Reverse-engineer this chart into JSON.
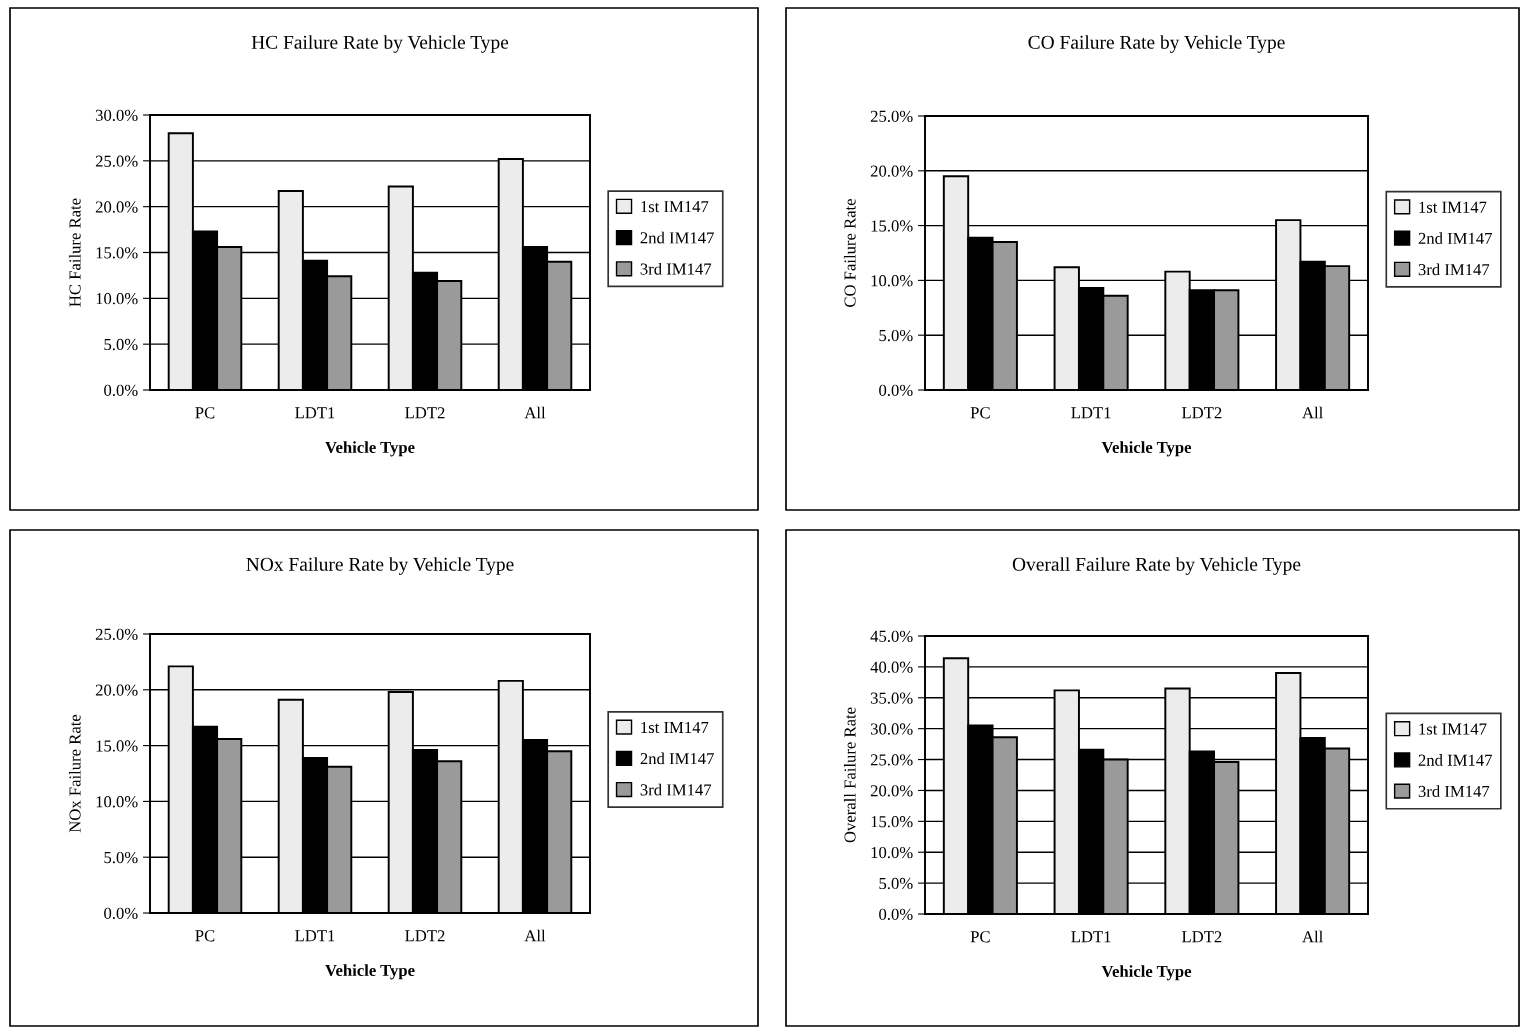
{
  "chart_data": [
    {
      "type": "bar",
      "title": "HC Failure Rate by Vehicle Type",
      "xlabel": "Vehicle Type",
      "ylabel": "HC Failure Rate",
      "categories": [
        "PC",
        "LDT1",
        "LDT2",
        "All"
      ],
      "series": [
        {
          "name": "1st IM147",
          "color": "#ececec",
          "values": [
            28.0,
            21.7,
            22.2,
            25.2
          ]
        },
        {
          "name": "2nd IM147",
          "color": "#000000",
          "values": [
            17.3,
            14.1,
            12.8,
            15.6
          ]
        },
        {
          "name": "3rd IM147",
          "color": "#9a9a9a",
          "values": [
            15.6,
            12.4,
            11.9,
            14.0
          ]
        }
      ],
      "ylim": [
        0,
        30
      ],
      "yticks": [
        {
          "value": 0,
          "label": "0.0%"
        },
        {
          "value": 5,
          "label": "5.0%"
        },
        {
          "value": 10,
          "label": "10.0%"
        },
        {
          "value": 15,
          "label": "15.0%"
        },
        {
          "value": 20,
          "label": "20.0%"
        },
        {
          "value": 25,
          "label": "25.0%"
        },
        {
          "value": 30,
          "label": "30.0%"
        }
      ],
      "grid": "y",
      "legend": "right"
    },
    {
      "type": "bar",
      "title": "CO Failure Rate by Vehicle Type",
      "xlabel": "Vehicle Type",
      "ylabel": "CO Failure Rate",
      "categories": [
        "PC",
        "LDT1",
        "LDT2",
        "All"
      ],
      "series": [
        {
          "name": "1st IM147",
          "color": "#ececec",
          "values": [
            19.5,
            11.2,
            10.8,
            15.5
          ]
        },
        {
          "name": "2nd IM147",
          "color": "#000000",
          "values": [
            13.9,
            9.3,
            9.1,
            11.7
          ]
        },
        {
          "name": "3rd IM147",
          "color": "#9a9a9a",
          "values": [
            13.5,
            8.6,
            9.1,
            11.3
          ]
        }
      ],
      "ylim": [
        0,
        25
      ],
      "yticks": [
        {
          "value": 0,
          "label": "0.0%"
        },
        {
          "value": 5,
          "label": "5.0%"
        },
        {
          "value": 10,
          "label": "10.0%"
        },
        {
          "value": 15,
          "label": "15.0%"
        },
        {
          "value": 20,
          "label": "20.0%"
        },
        {
          "value": 25,
          "label": "25.0%"
        }
      ],
      "grid": "y",
      "legend": "right"
    },
    {
      "type": "bar",
      "title": "NOx Failure Rate by Vehicle Type",
      "xlabel": "Vehicle Type",
      "ylabel": "NOx Failure Rate",
      "categories": [
        "PC",
        "LDT1",
        "LDT2",
        "All"
      ],
      "series": [
        {
          "name": "1st IM147",
          "color": "#ececec",
          "values": [
            22.1,
            19.1,
            19.8,
            20.8
          ]
        },
        {
          "name": "2nd IM147",
          "color": "#000000",
          "values": [
            16.7,
            13.9,
            14.6,
            15.5
          ]
        },
        {
          "name": "3rd IM147",
          "color": "#9a9a9a",
          "values": [
            15.6,
            13.1,
            13.6,
            14.5
          ]
        }
      ],
      "ylim": [
        0,
        25
      ],
      "yticks": [
        {
          "value": 0,
          "label": "0.0%"
        },
        {
          "value": 5,
          "label": "5.0%"
        },
        {
          "value": 10,
          "label": "10.0%"
        },
        {
          "value": 15,
          "label": "15.0%"
        },
        {
          "value": 20,
          "label": "20.0%"
        },
        {
          "value": 25,
          "label": "25.0%"
        }
      ],
      "grid": "y",
      "legend": "right"
    },
    {
      "type": "bar",
      "title": "Overall Failure Rate by Vehicle Type",
      "xlabel": "Vehicle Type",
      "ylabel": "Overall Failure Rate",
      "categories": [
        "PC",
        "LDT1",
        "LDT2",
        "All"
      ],
      "series": [
        {
          "name": "1st IM147",
          "color": "#ececec",
          "values": [
            41.4,
            36.2,
            36.5,
            39.0
          ]
        },
        {
          "name": "2nd IM147",
          "color": "#000000",
          "values": [
            30.5,
            26.6,
            26.3,
            28.5
          ]
        },
        {
          "name": "3rd IM147",
          "color": "#9a9a9a",
          "values": [
            28.6,
            25.0,
            24.6,
            26.8
          ]
        }
      ],
      "ylim": [
        0,
        45
      ],
      "yticks": [
        {
          "value": 0,
          "label": "0.0%"
        },
        {
          "value": 5,
          "label": "5.0%"
        },
        {
          "value": 10,
          "label": "10.0%"
        },
        {
          "value": 15,
          "label": "15.0%"
        },
        {
          "value": 20,
          "label": "20.0%"
        },
        {
          "value": 25,
          "label": "25.0%"
        },
        {
          "value": 30,
          "label": "30.0%"
        },
        {
          "value": 35,
          "label": "35.0%"
        },
        {
          "value": 40,
          "label": "40.0%"
        },
        {
          "value": 45,
          "label": "45.0%"
        }
      ],
      "grid": "y",
      "legend": "right"
    }
  ]
}
